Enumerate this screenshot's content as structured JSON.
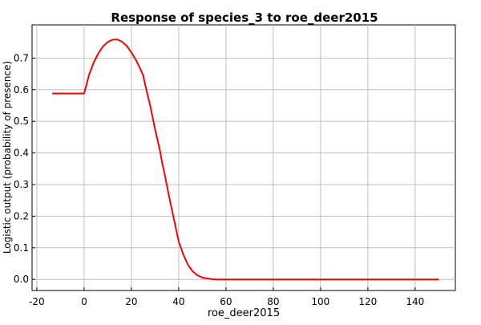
{
  "chart_data": {
    "type": "line",
    "title": "Response of species_3 to roe_deer2015",
    "xlabel": "roe_deer2015",
    "ylabel": "Logistic output (probability of presence)",
    "xlim": [
      -22,
      157
    ],
    "ylim": [
      -0.035,
      0.805
    ],
    "xticks": [
      -20,
      0,
      20,
      40,
      60,
      80,
      100,
      120,
      140
    ],
    "yticks": [
      0.0,
      0.1,
      0.2,
      0.3,
      0.4,
      0.5,
      0.6,
      0.7
    ],
    "xtick_labels": [
      "-20",
      "0",
      "20",
      "40",
      "60",
      "80",
      "100",
      "120",
      "140"
    ],
    "ytick_labels": [
      "0.0",
      "0.1",
      "0.2",
      "0.3",
      "0.4",
      "0.5",
      "0.6",
      "0.7"
    ],
    "grid": true,
    "series": [
      {
        "color": "#ff0000",
        "x": [
          -13.5,
          0,
          1,
          2,
          4,
          6,
          8,
          10,
          12,
          14,
          16,
          18,
          20,
          22,
          24,
          25,
          26,
          28,
          30,
          32,
          33,
          34,
          36,
          38,
          40,
          42,
          44,
          46,
          48,
          50,
          52,
          54,
          56,
          60,
          80,
          100,
          120,
          140,
          150
        ],
        "y": [
          0.588,
          0.588,
          0.615,
          0.645,
          0.685,
          0.715,
          0.737,
          0.751,
          0.758,
          0.759,
          0.752,
          0.739,
          0.718,
          0.693,
          0.662,
          0.645,
          0.61,
          0.548,
          0.475,
          0.41,
          0.37,
          0.335,
          0.26,
          0.19,
          0.12,
          0.078,
          0.045,
          0.025,
          0.013,
          0.006,
          0.003,
          0.001,
          0.0,
          0.0,
          0.0,
          0.0,
          0.0,
          0.0,
          0.0
        ]
      }
    ]
  }
}
